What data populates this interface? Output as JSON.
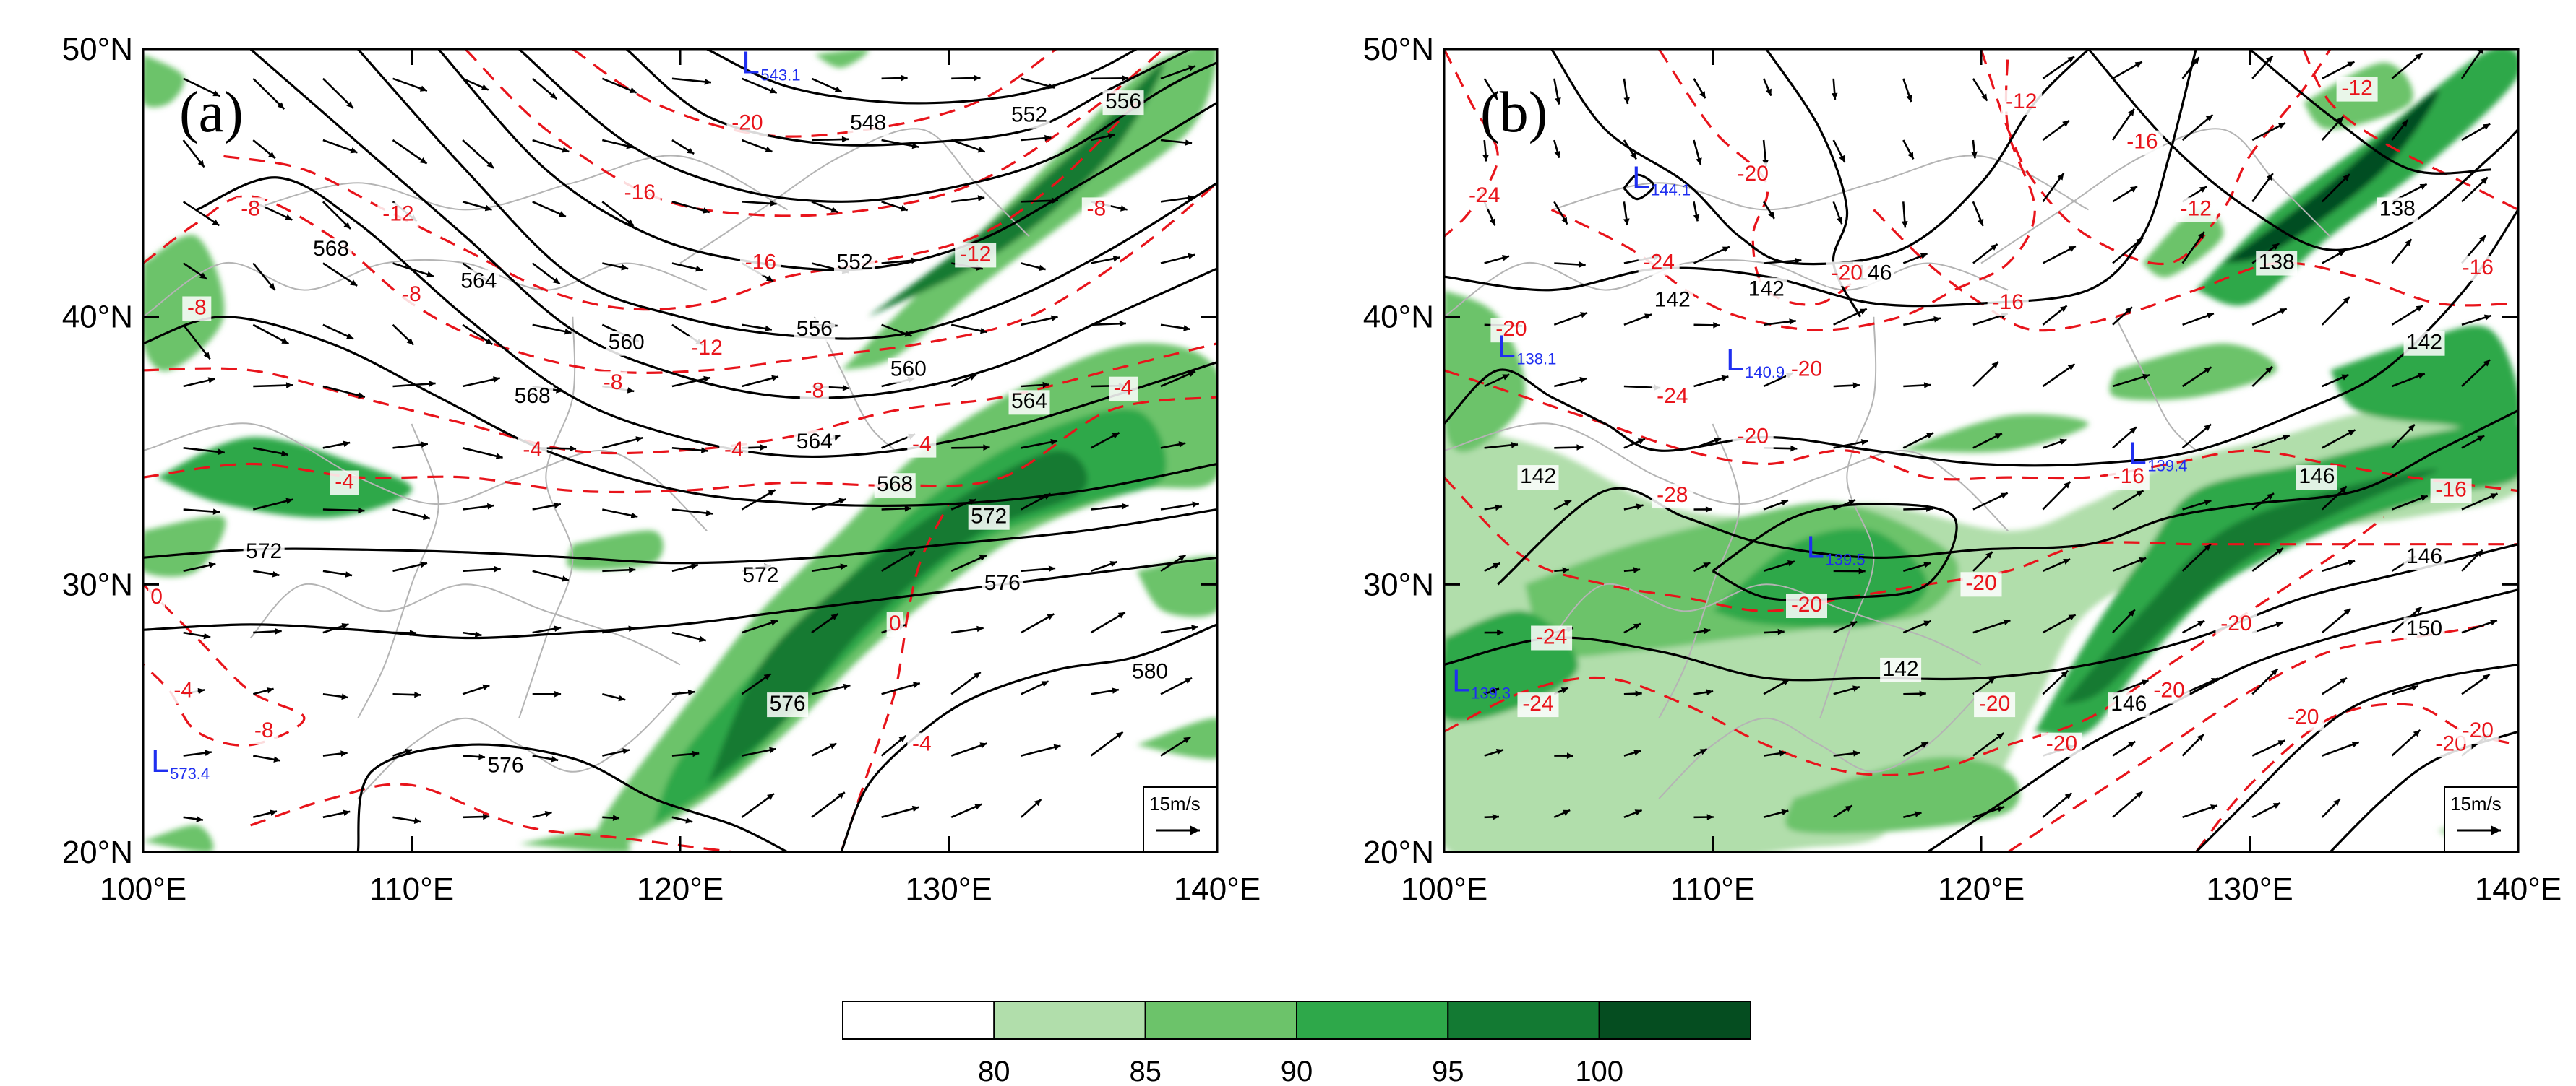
{
  "colorbar": {
    "levels": [
      "80",
      "85",
      "90",
      "95",
      "100"
    ],
    "colors": [
      "#ffffff",
      "#b1deab",
      "#6cc36a",
      "#2ea84a",
      "#137a33",
      "#054d20"
    ]
  },
  "axes": {
    "lat_ticks": [
      "20°N",
      "30°N",
      "40°N",
      "50°N"
    ],
    "lon_ticks": [
      "100°E",
      "110°E",
      "120°E",
      "130°E",
      "140°E"
    ],
    "lon_range": [
      100,
      140
    ],
    "lat_range": [
      20,
      50
    ]
  },
  "ref_vector": "15m/s",
  "colors": {
    "geopotential": "#000000",
    "temperature": "#e8141b",
    "low_marker": "#1f2ff0",
    "border": "#b4b4b4"
  },
  "panels": [
    {
      "label": "(a)",
      "contour_labels": [
        {
          "text": "548",
          "lon": 127.0,
          "lat": 47.2
        },
        {
          "text": "552",
          "lon": 133.0,
          "lat": 47.5
        },
        {
          "text": "556",
          "lon": 136.5,
          "lat": 48.0
        },
        {
          "text": "552",
          "lon": 126.5,
          "lat": 42.0
        },
        {
          "text": "556",
          "lon": 125.0,
          "lat": 39.5
        },
        {
          "text": "560",
          "lon": 128.5,
          "lat": 38.0
        },
        {
          "text": "560",
          "lon": 118.0,
          "lat": 39.0
        },
        {
          "text": "564",
          "lon": 112.5,
          "lat": 41.3
        },
        {
          "text": "564",
          "lon": 133.0,
          "lat": 36.8
        },
        {
          "text": "564",
          "lon": 125.0,
          "lat": 35.3
        },
        {
          "text": "568",
          "lon": 107.0,
          "lat": 42.5
        },
        {
          "text": "568",
          "lon": 114.5,
          "lat": 37.0
        },
        {
          "text": "568",
          "lon": 128.0,
          "lat": 33.7
        },
        {
          "text": "572",
          "lon": 131.5,
          "lat": 32.5
        },
        {
          "text": "572",
          "lon": 104.5,
          "lat": 31.2
        },
        {
          "text": "572",
          "lon": 123.0,
          "lat": 30.3
        },
        {
          "text": "576",
          "lon": 132.0,
          "lat": 30.0
        },
        {
          "text": "576",
          "lon": 124.0,
          "lat": 25.5
        },
        {
          "text": "576",
          "lon": 113.5,
          "lat": 23.2
        },
        {
          "text": "580",
          "lon": 137.5,
          "lat": 26.7
        }
      ],
      "temp_labels": [
        {
          "text": "-20",
          "lon": 122.5,
          "lat": 47.2
        },
        {
          "text": "-16",
          "lon": 118.5,
          "lat": 44.6
        },
        {
          "text": "-16",
          "lon": 123.0,
          "lat": 42.0
        },
        {
          "text": "-12",
          "lon": 109.5,
          "lat": 43.8
        },
        {
          "text": "-12",
          "lon": 121.0,
          "lat": 38.8
        },
        {
          "text": "-12",
          "lon": 131.0,
          "lat": 42.3
        },
        {
          "text": "-8",
          "lon": 104.0,
          "lat": 44.0
        },
        {
          "text": "-8",
          "lon": 102.0,
          "lat": 40.3
        },
        {
          "text": "-8",
          "lon": 110.0,
          "lat": 40.8
        },
        {
          "text": "-8",
          "lon": 117.5,
          "lat": 37.5
        },
        {
          "text": "-8",
          "lon": 125.0,
          "lat": 37.2
        },
        {
          "text": "-8",
          "lon": 135.5,
          "lat": 44.0
        },
        {
          "text": "-4",
          "lon": 114.5,
          "lat": 35.0
        },
        {
          "text": "-4",
          "lon": 122.0,
          "lat": 35.0
        },
        {
          "text": "-4",
          "lon": 129.0,
          "lat": 35.2
        },
        {
          "text": "-4",
          "lon": 136.5,
          "lat": 37.3
        },
        {
          "text": "-4",
          "lon": 107.5,
          "lat": 33.8
        },
        {
          "text": "0",
          "lon": 100.5,
          "lat": 29.5
        },
        {
          "text": "-4",
          "lon": 101.5,
          "lat": 26.0
        },
        {
          "text": "-8",
          "lon": 104.5,
          "lat": 24.5
        },
        {
          "text": "0",
          "lon": 128.0,
          "lat": 28.5
        },
        {
          "text": "-4",
          "lon": 129.0,
          "lat": 24.0
        }
      ],
      "lows": [
        {
          "value": "543.1",
          "lon": 122.3,
          "lat": 49.1
        },
        {
          "value": "573.4",
          "lon": 100.3,
          "lat": 23.0
        }
      ]
    },
    {
      "label": "(b)",
      "contour_labels": [
        {
          "text": "138",
          "lon": 131.0,
          "lat": 42.0
        },
        {
          "text": "138",
          "lon": 135.5,
          "lat": 44.0
        },
        {
          "text": "142",
          "lon": 108.5,
          "lat": 40.6
        },
        {
          "text": "142",
          "lon": 112.0,
          "lat": 41.0
        },
        {
          "text": "146",
          "lon": 116.0,
          "lat": 41.6
        },
        {
          "text": "142",
          "lon": 136.5,
          "lat": 39.0
        },
        {
          "text": "146",
          "lon": 132.5,
          "lat": 34.0
        },
        {
          "text": "146",
          "lon": 136.5,
          "lat": 31.0
        },
        {
          "text": "150",
          "lon": 136.5,
          "lat": 28.3
        },
        {
          "text": "142",
          "lon": 117.0,
          "lat": 26.8
        },
        {
          "text": "146",
          "lon": 125.5,
          "lat": 25.5
        },
        {
          "text": "142",
          "lon": 103.5,
          "lat": 34.0
        }
      ],
      "temp_labels": [
        {
          "text": "-24",
          "lon": 101.5,
          "lat": 44.5
        },
        {
          "text": "-20",
          "lon": 111.5,
          "lat": 45.3
        },
        {
          "text": "-16",
          "lon": 126.0,
          "lat": 46.5
        },
        {
          "text": "-12",
          "lon": 121.5,
          "lat": 48.0
        },
        {
          "text": "-12",
          "lon": 134.0,
          "lat": 48.5
        },
        {
          "text": "-12",
          "lon": 128.0,
          "lat": 44.0
        },
        {
          "text": "-16",
          "lon": 138.5,
          "lat": 41.8
        },
        {
          "text": "-16",
          "lon": 121.0,
          "lat": 40.5
        },
        {
          "text": "-24",
          "lon": 108.0,
          "lat": 42.0
        },
        {
          "text": "-20",
          "lon": 115.0,
          "lat": 41.6
        },
        {
          "text": "-20",
          "lon": 102.5,
          "lat": 39.5
        },
        {
          "text": "-24",
          "lon": 108.5,
          "lat": 37.0
        },
        {
          "text": "-20",
          "lon": 113.5,
          "lat": 38.0
        },
        {
          "text": "-20",
          "lon": 111.5,
          "lat": 35.5
        },
        {
          "text": "-16",
          "lon": 125.5,
          "lat": 34.0
        },
        {
          "text": "-16",
          "lon": 137.5,
          "lat": 33.5
        },
        {
          "text": "-28",
          "lon": 108.5,
          "lat": 33.3
        },
        {
          "text": "-20",
          "lon": 120.0,
          "lat": 30.0
        },
        {
          "text": "-20",
          "lon": 113.5,
          "lat": 29.2
        },
        {
          "text": "-24",
          "lon": 104.0,
          "lat": 28.0
        },
        {
          "text": "-24",
          "lon": 103.5,
          "lat": 25.5
        },
        {
          "text": "-20",
          "lon": 120.5,
          "lat": 25.5
        },
        {
          "text": "-20",
          "lon": 123.0,
          "lat": 24.0
        },
        {
          "text": "-20",
          "lon": 127.0,
          "lat": 26.0
        },
        {
          "text": "-20",
          "lon": 129.5,
          "lat": 28.5
        },
        {
          "text": "-20",
          "lon": 132.0,
          "lat": 25.0
        },
        {
          "text": "-20",
          "lon": 137.5,
          "lat": 24.0
        },
        {
          "text": "-20",
          "lon": 138.5,
          "lat": 24.5
        }
      ],
      "lows": [
        {
          "value": "144.1",
          "lon": 107.0,
          "lat": 44.8
        },
        {
          "value": "138.1",
          "lon": 102.0,
          "lat": 38.5
        },
        {
          "value": "140.9",
          "lon": 110.5,
          "lat": 38.0
        },
        {
          "value": "139.5",
          "lon": 113.5,
          "lat": 31.0
        },
        {
          "value": "139.4",
          "lon": 125.5,
          "lat": 34.5
        },
        {
          "value": "139.3",
          "lon": 100.3,
          "lat": 26.0
        }
      ]
    }
  ]
}
